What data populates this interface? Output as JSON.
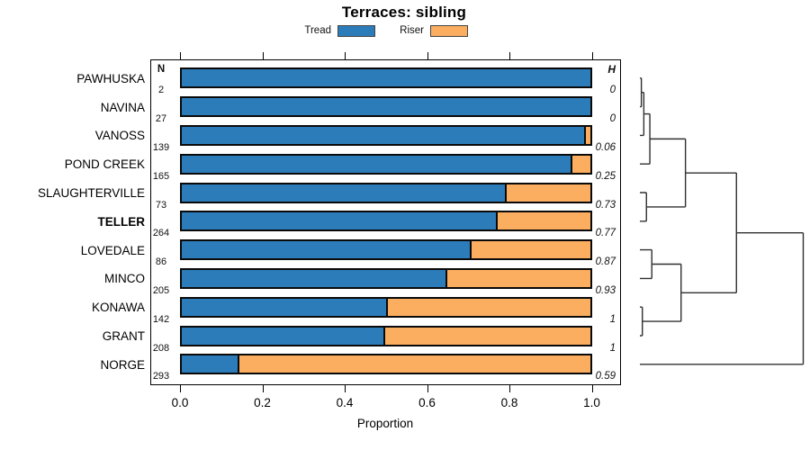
{
  "chart_data": {
    "type": "bar",
    "stacked": true,
    "orientation": "horizontal",
    "title": "Terraces: sibling",
    "xlabel": "Proportion",
    "xlim": [
      0,
      1
    ],
    "xticks": [
      "0.0",
      "0.2",
      "0.4",
      "0.6",
      "0.8",
      "1.0"
    ],
    "xtick_values": [
      0.0,
      0.2,
      0.4,
      0.6,
      0.8,
      1.0
    ],
    "grid": false,
    "legend_position": "top",
    "legend": [
      {
        "label": "Tread",
        "color": "#2D7CBA"
      },
      {
        "label": "Riser",
        "color": "#FBAD60"
      }
    ],
    "n_header": "N",
    "h_header": "H",
    "rows": [
      {
        "site": "PAWHUSKA",
        "n": "2",
        "tread": 1.0,
        "riser": 0.0,
        "h": "0",
        "bold": false
      },
      {
        "site": "NAVINA",
        "n": "27",
        "tread": 1.0,
        "riser": 0.0,
        "h": "0",
        "bold": false
      },
      {
        "site": "VANOSS",
        "n": "139",
        "tread": 0.99,
        "riser": 0.01,
        "h": "0.06",
        "bold": false
      },
      {
        "site": "POND CREEK",
        "n": "165",
        "tread": 0.957,
        "riser": 0.043,
        "h": "0.25",
        "bold": false
      },
      {
        "site": "SLAUGHTERVILLE",
        "n": "73",
        "tread": 0.795,
        "riser": 0.205,
        "h": "0.73",
        "bold": false
      },
      {
        "site": "TELLER",
        "n": "264",
        "tread": 0.775,
        "riser": 0.225,
        "h": "0.77",
        "bold": true
      },
      {
        "site": "LOVEDALE",
        "n": "86",
        "tread": 0.71,
        "riser": 0.29,
        "h": "0.87",
        "bold": false
      },
      {
        "site": "MINCO",
        "n": "205",
        "tread": 0.65,
        "riser": 0.35,
        "h": "0.93",
        "bold": false
      },
      {
        "site": "KONAWA",
        "n": "142",
        "tread": 0.505,
        "riser": 0.495,
        "h": "1",
        "bold": false
      },
      {
        "site": "GRANT",
        "n": "208",
        "tread": 0.498,
        "riser": 0.502,
        "h": "1",
        "bold": false
      },
      {
        "site": "NORGE",
        "n": "293",
        "tread": 0.142,
        "riser": 0.858,
        "h": "0.59",
        "bold": false
      }
    ],
    "dendrogram": {
      "leaf_order_matches_rows": true,
      "line_color": "#303030",
      "merges": [
        {
          "a": "L0",
          "b": "L1",
          "height": 0.009
        },
        {
          "a": "M0",
          "b": "L2",
          "height": 0.024
        },
        {
          "a": "M1",
          "b": "L3",
          "height": 0.061
        },
        {
          "a": "L4",
          "b": "L5",
          "height": 0.04
        },
        {
          "a": "M2",
          "b": "M3",
          "height": 0.279
        },
        {
          "a": "L6",
          "b": "L7",
          "height": 0.073
        },
        {
          "a": "L8",
          "b": "L9",
          "height": 0.015
        },
        {
          "a": "M5",
          "b": "M6",
          "height": 0.252
        },
        {
          "a": "M4",
          "b": "M7",
          "height": 0.591
        },
        {
          "a": "M8",
          "b": "L10",
          "height": 1.0
        }
      ]
    },
    "colors": {
      "tread": "#2D7CBA",
      "riser": "#FBAD60",
      "bar_border": "#0a0a0a"
    }
  }
}
